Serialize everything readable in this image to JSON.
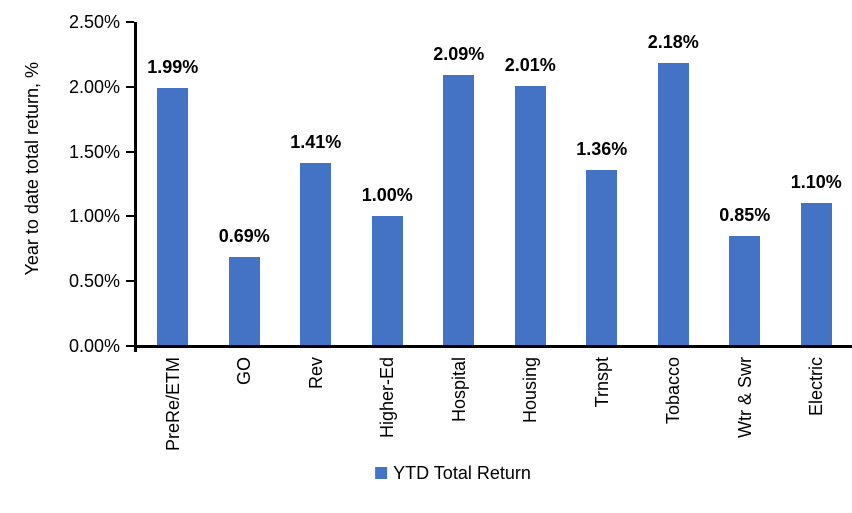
{
  "chart_data": {
    "type": "bar",
    "title": "",
    "xlabel": "",
    "ylabel": "Year to date total return, %",
    "categories": [
      "PreRe/ETM",
      "GO",
      "Rev",
      "Higher-Ed",
      "Hospital",
      "Housing",
      "Trnspt",
      "Tobacco",
      "Wtr & Swr",
      "Electric"
    ],
    "series": [
      {
        "name": "YTD Total Return",
        "values": [
          1.99,
          0.69,
          1.41,
          1.0,
          2.09,
          2.01,
          1.36,
          2.18,
          0.85,
          1.1
        ]
      }
    ],
    "data_labels": [
      "1.99%",
      "0.69%",
      "1.41%",
      "1.00%",
      "2.09%",
      "2.01%",
      "1.36%",
      "2.18%",
      "0.85%",
      "1.10%"
    ],
    "y_axis": {
      "min": 0,
      "max": 2.5,
      "tick_step": 0.5,
      "tick_labels": [
        "0.00%",
        "0.50%",
        "1.00%",
        "1.50%",
        "2.00%",
        "2.50%"
      ]
    },
    "legend": {
      "position": "bottom",
      "entries": [
        {
          "label": "YTD Total Return",
          "color": "#4472C4"
        }
      ]
    },
    "grid": false,
    "bar_color": "#4472C4"
  },
  "colors": {
    "bar": "#4472C4",
    "axis": "#000000",
    "text": "#000000",
    "background": "#FFFFFF"
  }
}
